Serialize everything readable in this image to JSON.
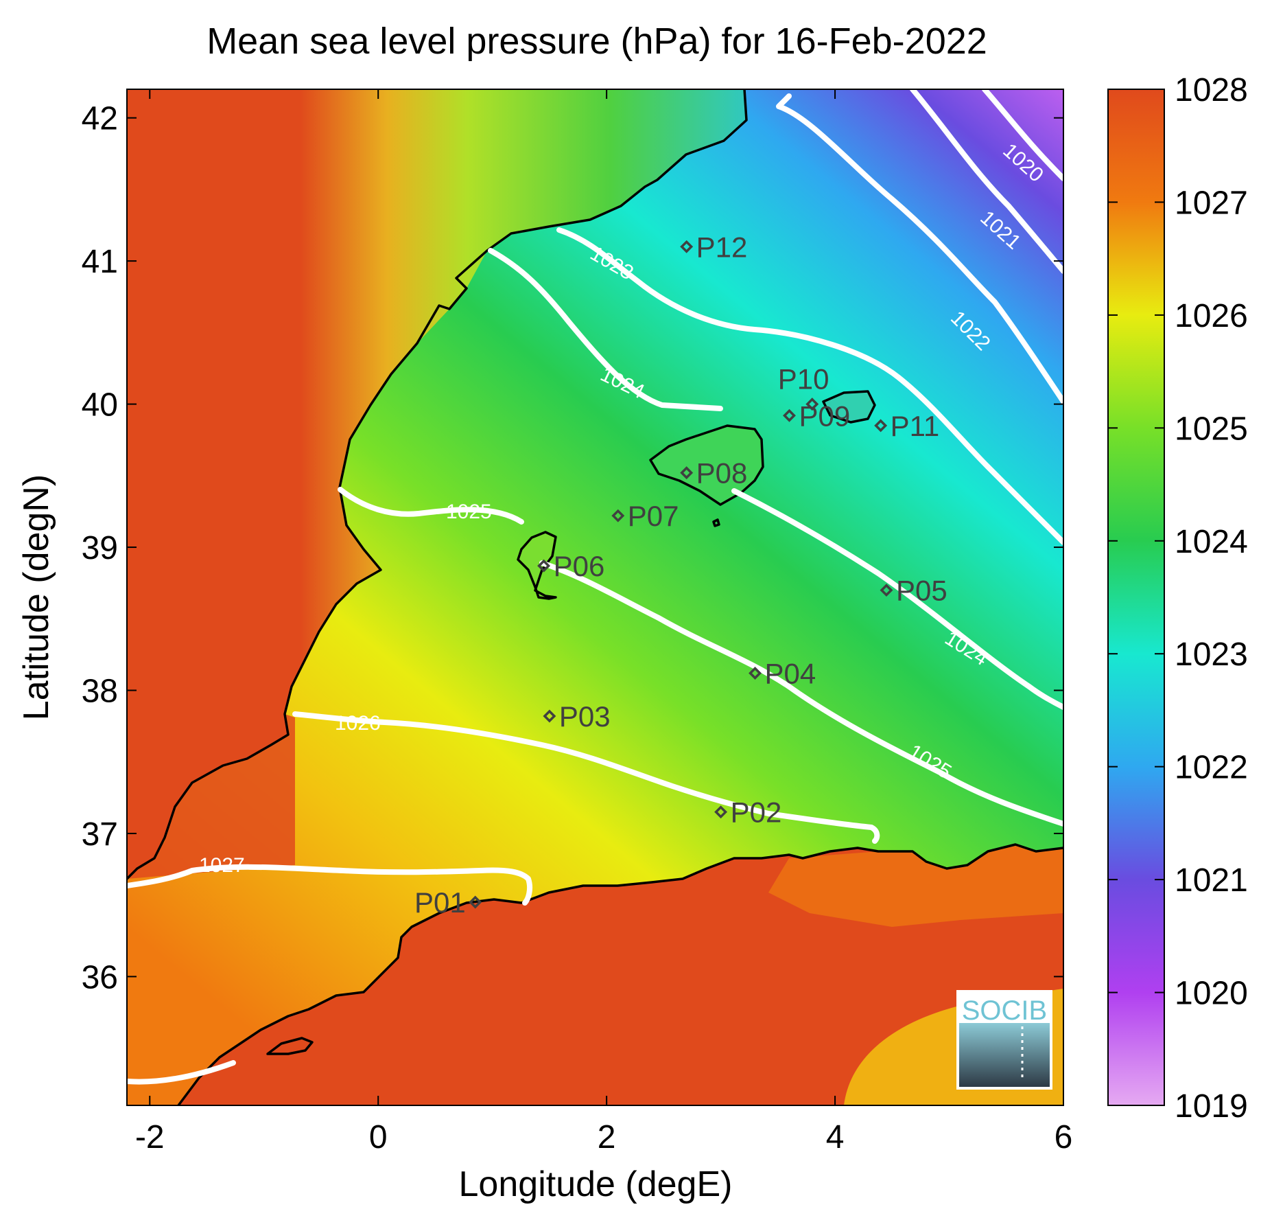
{
  "title": "Mean sea level pressure (hPa) for 16-Feb-2022",
  "xlabel": "Longitude (degE)",
  "ylabel": "Latitude (degN)",
  "logo_text": "SOCIB",
  "colors": {
    "c1019": "#e6aaf2",
    "c1020": "#b040f0",
    "c1021": "#6a4ce0",
    "c1022": "#2fa8f0",
    "c1023": "#18e8d0",
    "c1024": "#28cc50",
    "c1025": "#78e028",
    "c1026": "#e8ec10",
    "c1027": "#f07a10",
    "c1028": "#e04a1c",
    "land": "#e04a1c",
    "isobar": "#ffffff"
  },
  "chart_data": {
    "type": "heatmap",
    "xlim": [
      -2.2,
      6.0
    ],
    "ylim": [
      35.1,
      42.2
    ],
    "xticks": [
      -2,
      0,
      2,
      4,
      6
    ],
    "yticks": [
      36,
      37,
      38,
      39,
      40,
      41,
      42
    ],
    "colorbar": {
      "min": 1019,
      "max": 1028,
      "ticks": [
        1019,
        1020,
        1021,
        1022,
        1023,
        1024,
        1025,
        1026,
        1027,
        1028
      ]
    },
    "isobars": [
      {
        "value": 1020,
        "label": "1020"
      },
      {
        "value": 1021,
        "label": "1021"
      },
      {
        "value": 1022,
        "label": "1022"
      },
      {
        "value": 1023,
        "label": "1023"
      },
      {
        "value": 1024,
        "label": "1024"
      },
      {
        "value": 1024,
        "label": "1024"
      },
      {
        "value": 1025,
        "label": "1025"
      },
      {
        "value": 1025,
        "label": "1025"
      },
      {
        "value": 1026,
        "label": "1026"
      },
      {
        "value": 1027,
        "label": "1027"
      }
    ],
    "stations": [
      {
        "name": "P01",
        "lon": 0.85,
        "lat": 36.52
      },
      {
        "name": "P02",
        "lon": 3.0,
        "lat": 37.15
      },
      {
        "name": "P03",
        "lon": 1.5,
        "lat": 37.82
      },
      {
        "name": "P04",
        "lon": 3.3,
        "lat": 38.12
      },
      {
        "name": "P05",
        "lon": 4.45,
        "lat": 38.7
      },
      {
        "name": "P06",
        "lon": 1.45,
        "lat": 38.87
      },
      {
        "name": "P07",
        "lon": 2.1,
        "lat": 39.22
      },
      {
        "name": "P08",
        "lon": 2.7,
        "lat": 39.52
      },
      {
        "name": "P09",
        "lon": 3.6,
        "lat": 39.92
      },
      {
        "name": "P10",
        "lon": 3.8,
        "lat": 40.0
      },
      {
        "name": "P11",
        "lon": 4.4,
        "lat": 39.85
      },
      {
        "name": "P12",
        "lon": 2.7,
        "lat": 41.1
      }
    ]
  }
}
